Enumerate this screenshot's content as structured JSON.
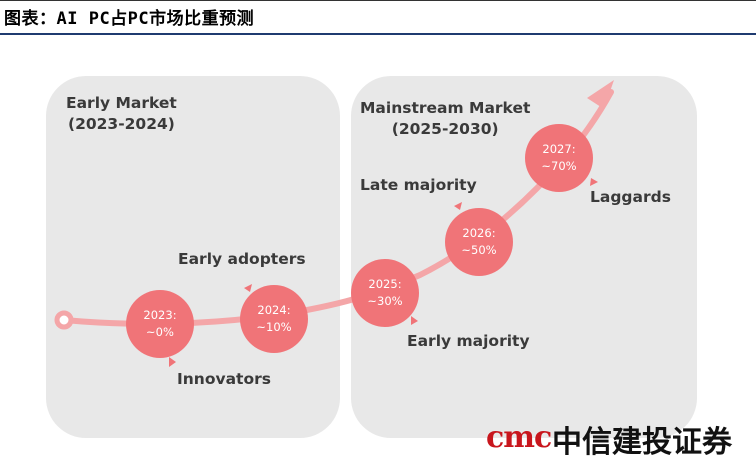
{
  "header": {
    "title": "图表：AI PC占PC市场比重预测"
  },
  "panels": {
    "early": {
      "title_line1": "Early Market",
      "title_line2": "(2023-2024)"
    },
    "mainstream": {
      "title_line1": "Mainstream Market",
      "title_line2": "(2025-2030)"
    }
  },
  "stages": {
    "innovators": "Innovators",
    "early_adopters": "Early adopters",
    "early_majority": "Early majority",
    "late_majority": "Late majority",
    "laggards": "Laggards"
  },
  "nodes": [
    {
      "year": "2023:",
      "share": "~0%"
    },
    {
      "year": "2024:",
      "share": "~10%"
    },
    {
      "year": "2025:",
      "share": "~30%"
    },
    {
      "year": "2026:",
      "share": "~50%"
    },
    {
      "year": "2027:",
      "share": "~70%"
    }
  ],
  "logo": {
    "mark": "cmc",
    "text": "中信建投证券"
  },
  "colors": {
    "accent": "#f07478",
    "curve": "#f4a6a8",
    "panel": "#e8e8e8",
    "header_rule": "#1f3b70"
  }
}
